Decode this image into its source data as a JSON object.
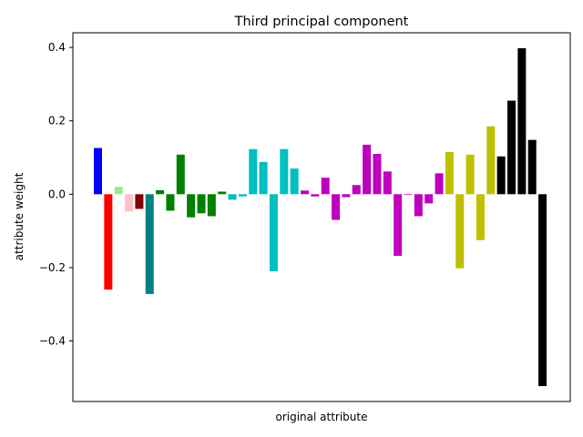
{
  "chart_data": {
    "type": "bar",
    "title": "Third principal component",
    "xlabel": "original attribute",
    "ylabel": "attribute weight",
    "ylim": [
      -0.565,
      0.44
    ],
    "yticks": [
      -0.4,
      -0.2,
      0.0,
      0.2,
      0.4
    ],
    "ytick_labels": [
      "−0.4",
      "−0.2",
      "0.0",
      "0.2",
      "0.4"
    ],
    "show_xticks": false,
    "grid": false,
    "legend": "none",
    "values": [
      0.126,
      -0.26,
      0.02,
      -0.047,
      -0.04,
      -0.272,
      0.011,
      -0.045,
      0.108,
      -0.063,
      -0.052,
      -0.06,
      0.007,
      -0.015,
      -0.006,
      0.123,
      0.088,
      -0.21,
      0.123,
      0.07,
      0.01,
      -0.006,
      0.045,
      -0.07,
      -0.008,
      0.025,
      0.135,
      0.11,
      0.062,
      -0.168,
      -0.002,
      -0.06,
      -0.025,
      0.057,
      0.115,
      -0.202,
      0.108,
      -0.125,
      0.185,
      0.103,
      0.255,
      0.398,
      0.148,
      -0.523
    ],
    "colors": [
      "#0000ff",
      "#ff0000",
      "#90ee90",
      "#ffc0cb",
      "#800000",
      "#008080",
      "#008000",
      "#008000",
      "#008000",
      "#008000",
      "#008000",
      "#008000",
      "#008000",
      "#00bfbf",
      "#00bfbf",
      "#00bfbf",
      "#00bfbf",
      "#00bfbf",
      "#00bfbf",
      "#00bfbf",
      "#bf00bf",
      "#bf00bf",
      "#bf00bf",
      "#bf00bf",
      "#bf00bf",
      "#bf00bf",
      "#bf00bf",
      "#bf00bf",
      "#bf00bf",
      "#bf00bf",
      "#bf00bf",
      "#bf00bf",
      "#bf00bf",
      "#bf00bf",
      "#bfbf00",
      "#bfbf00",
      "#bfbf00",
      "#bfbf00",
      "#bfbf00",
      "#000000",
      "#000000",
      "#000000",
      "#000000",
      "#000000"
    ]
  }
}
